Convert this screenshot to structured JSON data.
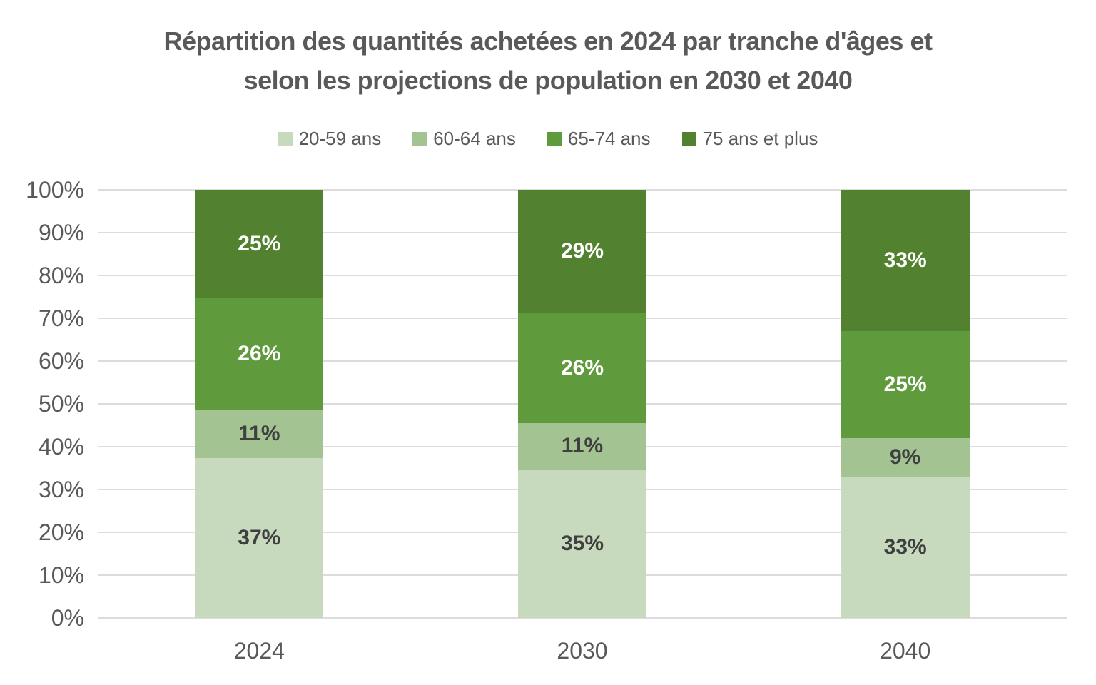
{
  "title": {
    "line1": "Répartition des quantités achetées en 2024 par tranche d'âges et",
    "line2": "selon les projections de population en 2030 et 2040"
  },
  "chart_data": {
    "type": "bar",
    "stacked": true,
    "percent_stacked": true,
    "title": "Répartition des quantités achetées en 2024 par tranche d'âges et selon les projections de population en 2030 et 2040",
    "categories": [
      "2024",
      "2030",
      "2040"
    ],
    "series": [
      {
        "name": "20-59 ans",
        "values": [
          37,
          35,
          33
        ],
        "color": "#c7dabd",
        "label_color": "#3f3f3f"
      },
      {
        "name": "60-64 ans",
        "values": [
          11,
          11,
          9
        ],
        "color": "#a3c492",
        "label_color": "#3f3f3f"
      },
      {
        "name": "65-74 ans",
        "values": [
          26,
          26,
          25
        ],
        "color": "#5f9a3d",
        "label_color": "#ffffff"
      },
      {
        "name": "75 ans et plus",
        "values": [
          25,
          29,
          33
        ],
        "color": "#52812f",
        "label_color": "#ffffff"
      }
    ],
    "data_label_suffix": "%",
    "y_axis": {
      "min": 0,
      "max": 100,
      "tick_step": 10,
      "tick_labels": [
        "0%",
        "10%",
        "20%",
        "30%",
        "40%",
        "50%",
        "60%",
        "70%",
        "80%",
        "90%",
        "100%"
      ],
      "grid": true
    },
    "legend_position": "top",
    "colors": {
      "grid": "#dcdcdc",
      "axis_text": "#595959",
      "title_text": "#595959",
      "background": "#ffffff"
    }
  }
}
